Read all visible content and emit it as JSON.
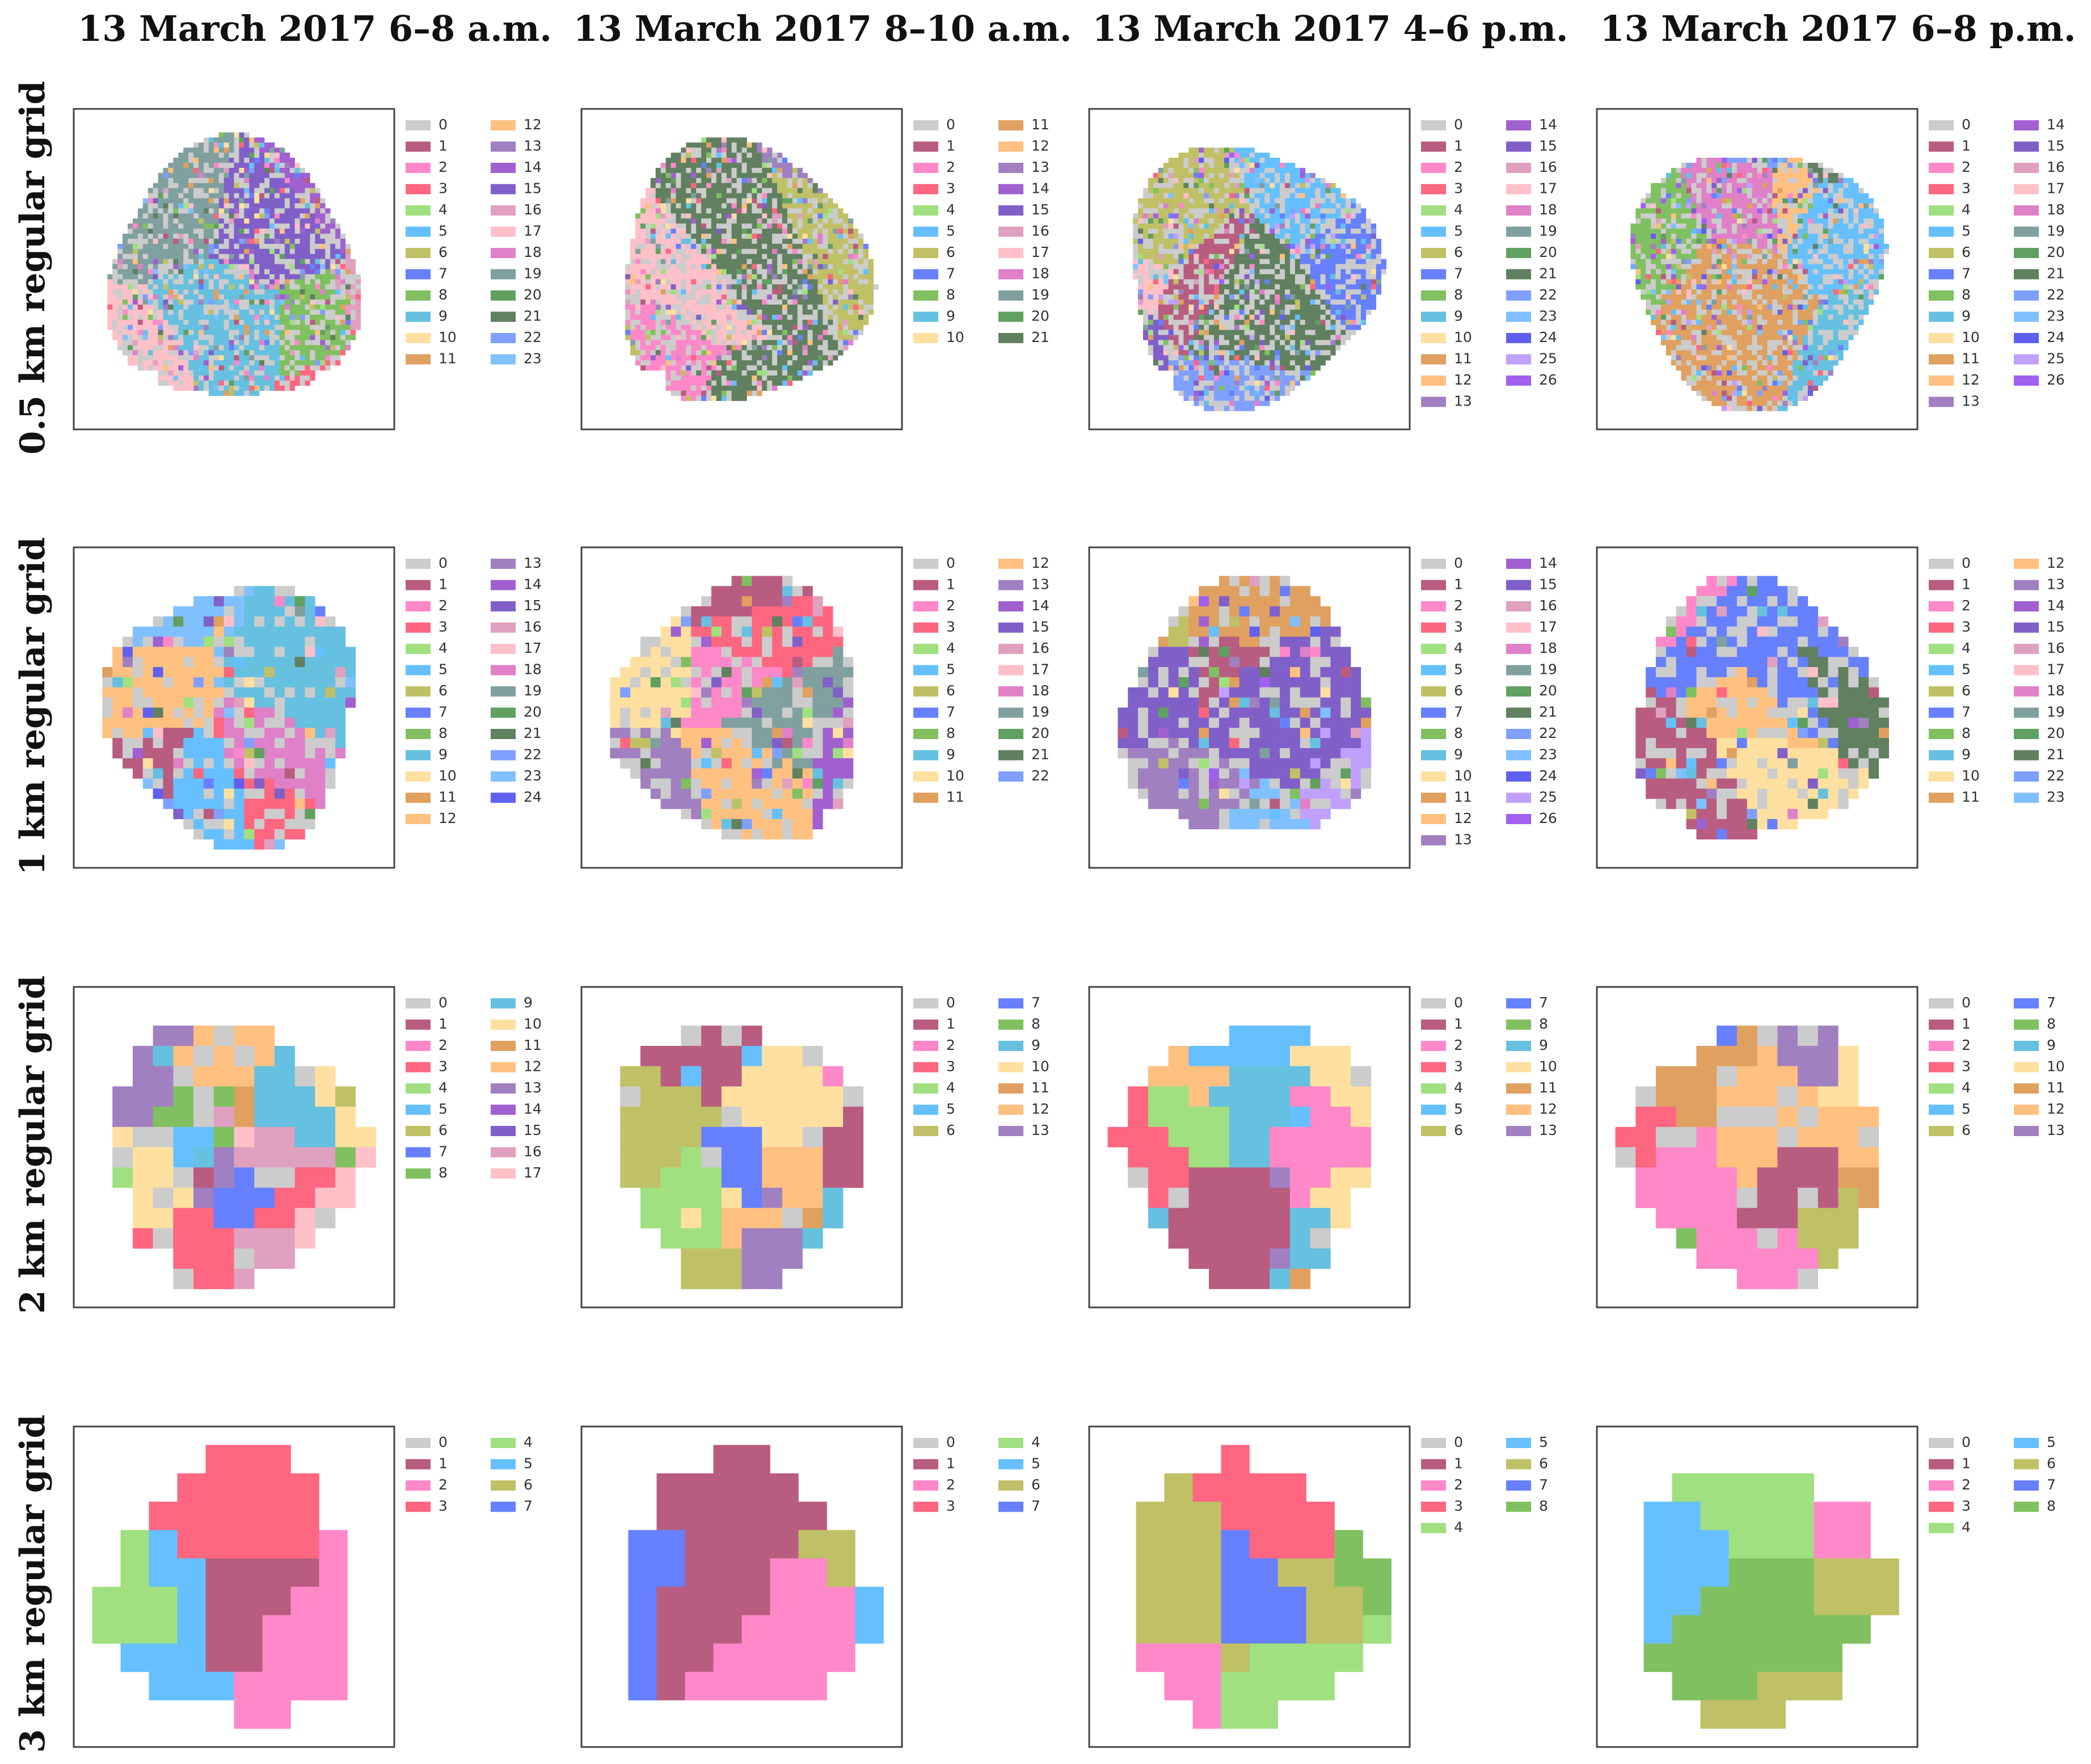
{
  "columns": [
    "13 March 2017 6–8 a.m.",
    "13 March 2017 8–10 a.m.",
    "13 March 2017 4–6 p.m.",
    "13 March 2017 6–8 p.m."
  ],
  "rows": [
    "0.5 km regular grid",
    "1 km regular grid",
    "2 km regular grid",
    "3 km regular grid"
  ],
  "palette": [
    "#cccccc",
    "#b85c80",
    "#ff88c8",
    "#ff6680",
    "#a0e080",
    "#66c0ff",
    "#c0c066",
    "#6680ff",
    "#80c060",
    "#66c0e0",
    "#ffe0a0",
    "#e0a060",
    "#ffc080",
    "#a080c0",
    "#a060d0",
    "#8060c8",
    "#e0a0c0",
    "#ffc0c8",
    "#e080c8",
    "#80a0a0",
    "#60a060",
    "#608060",
    "#80a0ff",
    "#80c0ff",
    "#6060f0",
    "#c0a0ff",
    "#a060f0"
  ],
  "chart_data": [
    {
      "type": "heatmap",
      "row": 0,
      "col": 0,
      "clusters": 24,
      "legend": [
        "0",
        "1",
        "2",
        "3",
        "4",
        "5",
        "6",
        "7",
        "8",
        "9",
        "10",
        "11",
        "12",
        "13",
        "14",
        "15",
        "16",
        "17",
        "18",
        "19",
        "20",
        "21",
        "22",
        "23"
      ]
    },
    {
      "type": "heatmap",
      "row": 0,
      "col": 1,
      "clusters": 22,
      "legend": [
        "0",
        "1",
        "2",
        "3",
        "4",
        "5",
        "6",
        "7",
        "8",
        "9",
        "10",
        "11",
        "12",
        "13",
        "14",
        "15",
        "16",
        "17",
        "18",
        "19",
        "20",
        "21"
      ]
    },
    {
      "type": "heatmap",
      "row": 0,
      "col": 2,
      "clusters": 27,
      "legend": [
        "0",
        "1",
        "2",
        "3",
        "4",
        "5",
        "6",
        "7",
        "8",
        "9",
        "10",
        "11",
        "12",
        "13",
        "14",
        "15",
        "16",
        "17",
        "18",
        "19",
        "20",
        "21",
        "22",
        "23",
        "24",
        "25",
        "26"
      ]
    },
    {
      "type": "heatmap",
      "row": 0,
      "col": 3,
      "clusters": 27,
      "legend": [
        "0",
        "1",
        "2",
        "3",
        "4",
        "5",
        "6",
        "7",
        "8",
        "9",
        "10",
        "11",
        "12",
        "13",
        "14",
        "15",
        "16",
        "17",
        "18",
        "19",
        "20",
        "21",
        "22",
        "23",
        "24",
        "25",
        "26"
      ]
    },
    {
      "type": "heatmap",
      "row": 1,
      "col": 0,
      "clusters": 25,
      "legend": [
        "0",
        "1",
        "2",
        "3",
        "4",
        "5",
        "6",
        "7",
        "8",
        "9",
        "10",
        "11",
        "12",
        "13",
        "14",
        "15",
        "16",
        "17",
        "18",
        "19",
        "20",
        "21",
        "22",
        "23",
        "24"
      ]
    },
    {
      "type": "heatmap",
      "row": 1,
      "col": 1,
      "clusters": 23,
      "legend": [
        "0",
        "1",
        "2",
        "3",
        "4",
        "5",
        "6",
        "7",
        "8",
        "9",
        "10",
        "11",
        "12",
        "13",
        "14",
        "15",
        "16",
        "17",
        "18",
        "19",
        "20",
        "21",
        "22"
      ]
    },
    {
      "type": "heatmap",
      "row": 1,
      "col": 2,
      "clusters": 27,
      "legend": [
        "0",
        "1",
        "2",
        "3",
        "4",
        "5",
        "6",
        "7",
        "8",
        "9",
        "10",
        "11",
        "12",
        "13",
        "14",
        "15",
        "16",
        "17",
        "18",
        "19",
        "20",
        "21",
        "22",
        "23",
        "24",
        "25",
        "26"
      ]
    },
    {
      "type": "heatmap",
      "row": 1,
      "col": 3,
      "clusters": 24,
      "legend": [
        "0",
        "1",
        "2",
        "3",
        "4",
        "5",
        "6",
        "7",
        "8",
        "9",
        "10",
        "11",
        "12",
        "13",
        "14",
        "15",
        "16",
        "17",
        "18",
        "19",
        "20",
        "21",
        "22",
        "23"
      ]
    },
    {
      "type": "heatmap",
      "row": 2,
      "col": 0,
      "clusters": 18,
      "legend": [
        "0",
        "1",
        "2",
        "3",
        "4",
        "5",
        "6",
        "7",
        "8",
        "9",
        "10",
        "11",
        "12",
        "13",
        "14",
        "15",
        "16",
        "17"
      ]
    },
    {
      "type": "heatmap",
      "row": 2,
      "col": 1,
      "clusters": 14,
      "legend": [
        "0",
        "1",
        "2",
        "3",
        "4",
        "5",
        "6",
        "7",
        "8",
        "9",
        "10",
        "11",
        "12",
        "13"
      ]
    },
    {
      "type": "heatmap",
      "row": 2,
      "col": 2,
      "clusters": 14,
      "legend": [
        "0",
        "1",
        "2",
        "3",
        "4",
        "5",
        "6",
        "7",
        "8",
        "9",
        "10",
        "11",
        "12",
        "13"
      ]
    },
    {
      "type": "heatmap",
      "row": 2,
      "col": 3,
      "clusters": 14,
      "legend": [
        "0",
        "1",
        "2",
        "3",
        "4",
        "5",
        "6",
        "7",
        "8",
        "9",
        "10",
        "11",
        "12",
        "13"
      ]
    },
    {
      "type": "heatmap",
      "row": 3,
      "col": 0,
      "clusters": 8,
      "legend": [
        "0",
        "1",
        "2",
        "3",
        "4",
        "5",
        "6",
        "7"
      ]
    },
    {
      "type": "heatmap",
      "row": 3,
      "col": 1,
      "clusters": 8,
      "legend": [
        "0",
        "1",
        "2",
        "3",
        "4",
        "5",
        "6",
        "7"
      ]
    },
    {
      "type": "heatmap",
      "row": 3,
      "col": 2,
      "clusters": 9,
      "legend": [
        "0",
        "1",
        "2",
        "3",
        "4",
        "5",
        "6",
        "7",
        "8"
      ]
    },
    {
      "type": "heatmap",
      "row": 3,
      "col": 3,
      "clusters": 9,
      "legend": [
        "0",
        "1",
        "2",
        "3",
        "4",
        "5",
        "6",
        "7",
        "8"
      ]
    }
  ]
}
